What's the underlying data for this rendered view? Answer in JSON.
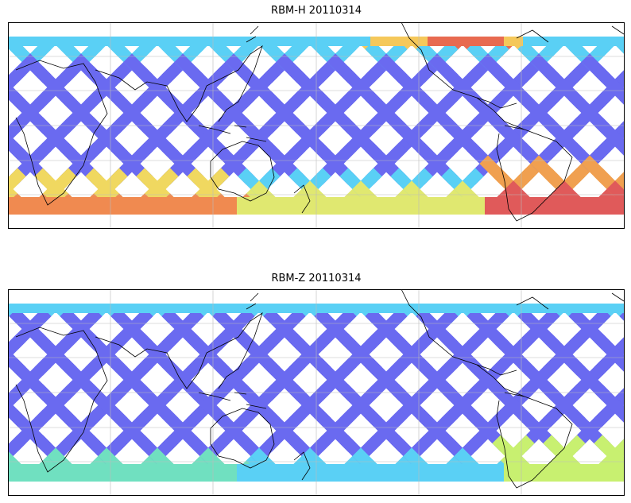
{
  "figure": {
    "panels": [
      {
        "title": "RBM-H 20110314",
        "colormap": "jet",
        "tracks": "satellite ground tracks (descending/ascending swaths)",
        "high_regions": [
          "south-east pacific / south america (red)",
          "north-east pacific (orange/red)",
          "southern indian ocean (orange)"
        ]
      },
      {
        "title": "RBM-Z 20110314",
        "colormap": "jet",
        "tracks": "satellite ground tracks (descending/ascending swaths)",
        "high_regions": [
          "south-east pacific (yellow-green)"
        ]
      }
    ],
    "colors": {
      "low": "#6a6af0",
      "mid": "#5ad0f5",
      "mid_high": "#d8f060",
      "high": "#e05a5a",
      "coast": "#000000",
      "grid": "#bbbbbb"
    }
  }
}
